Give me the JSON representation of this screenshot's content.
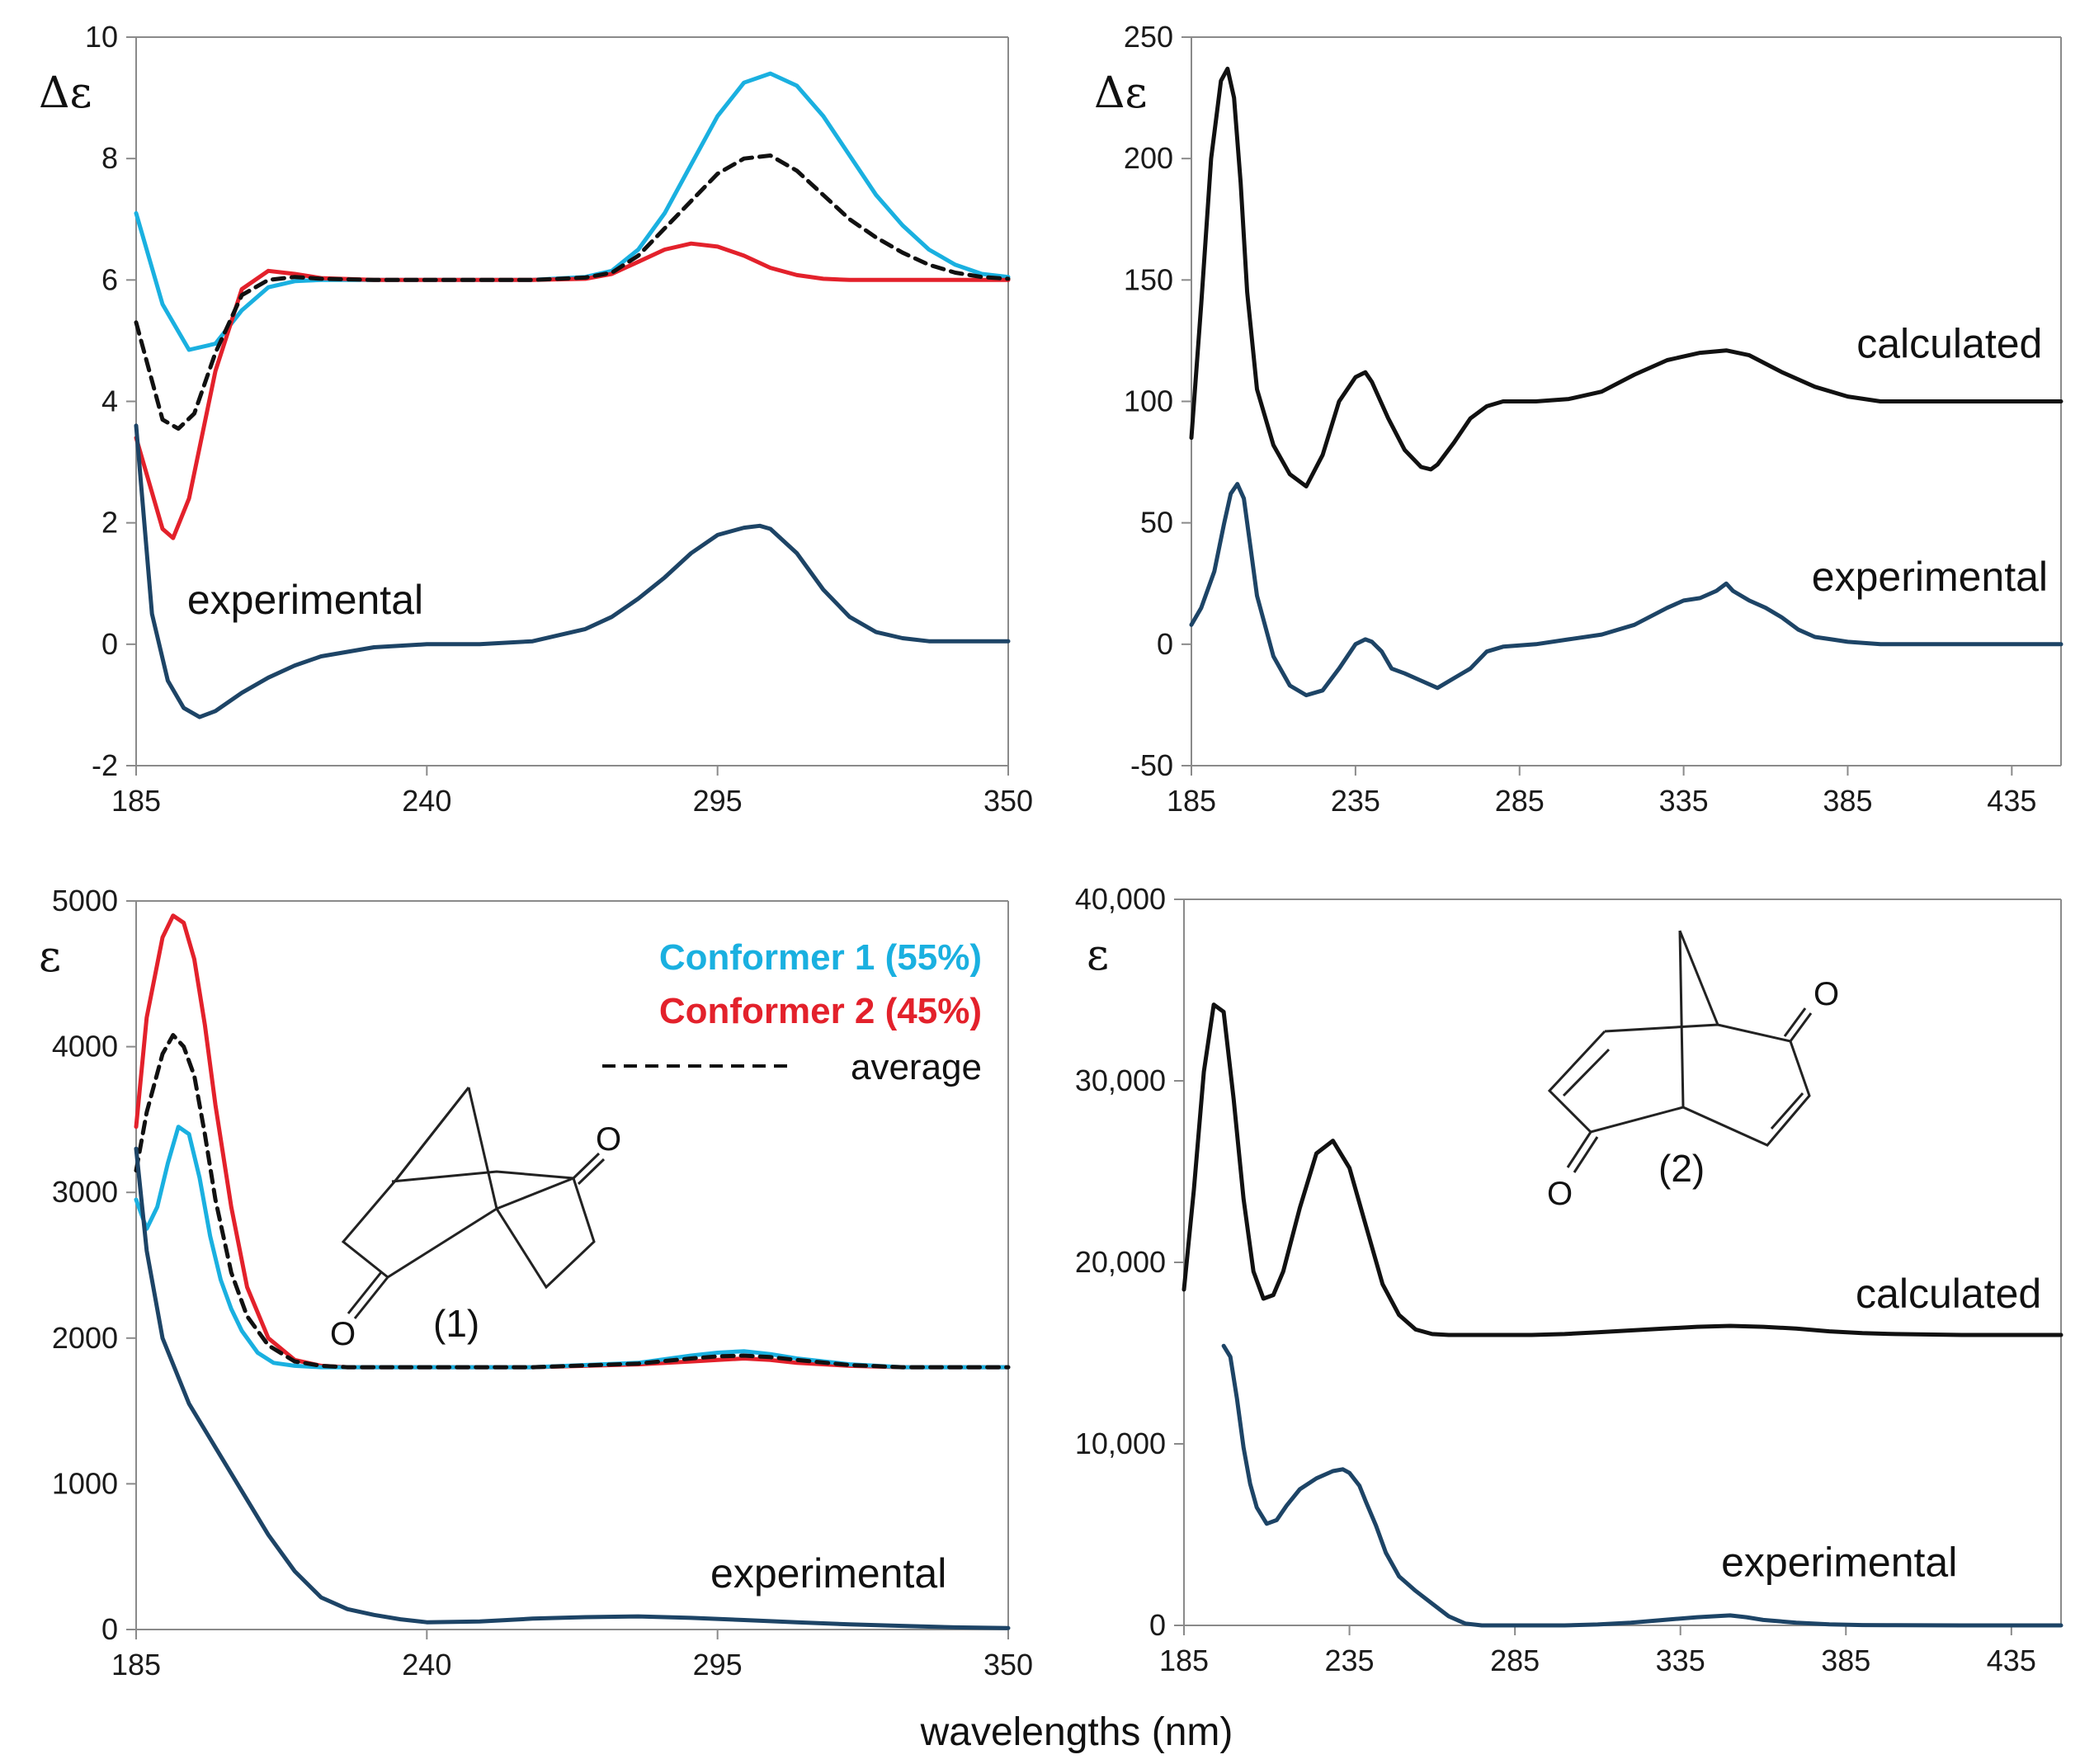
{
  "xlabel": "wavelengths (nm)",
  "colors": {
    "conformer1": "#1ab0e0",
    "conformer2": "#e3212b",
    "average": "#111111",
    "experimental": "#1d4466",
    "calculated": "#111111",
    "axis": "#8a8a8a"
  },
  "legend": {
    "conformer1": "Conformer 1 (55%)",
    "conformer2": "Conformer 2 (45%)",
    "average": "average"
  },
  "molecules": {
    "m1": {
      "label": "(1)",
      "atom_top": "O",
      "atom_bottom": "O"
    },
    "m2": {
      "label": "(2)",
      "atom_top": "O",
      "atom_bottom": "O"
    }
  },
  "chart_data": [
    {
      "id": "tl",
      "type": "line",
      "ylabel": "Δε",
      "xlim": [
        185,
        350
      ],
      "ylim": [
        -2,
        10
      ],
      "xticks": [
        185,
        240,
        295,
        350
      ],
      "yticks": [
        -2,
        0,
        2,
        4,
        6,
        8,
        10
      ],
      "ytick_labels": [
        "-2",
        "0",
        "2",
        "4",
        "6",
        "8",
        "10"
      ],
      "series_labels": [
        {
          "text": "experimental",
          "x": 217,
          "y": 0.5
        }
      ],
      "series": [
        {
          "key": "conformer1",
          "x": [
            185,
            190,
            195,
            200,
            205,
            210,
            215,
            220,
            230,
            240,
            250,
            260,
            270,
            275,
            280,
            285,
            290,
            295,
            300,
            305,
            310,
            315,
            320,
            325,
            330,
            335,
            340,
            345,
            350
          ],
          "values": [
            7.1,
            5.6,
            4.85,
            4.95,
            5.5,
            5.88,
            5.98,
            6.0,
            6.0,
            6.0,
            6.0,
            6.0,
            6.05,
            6.15,
            6.5,
            7.1,
            7.9,
            8.7,
            9.25,
            9.4,
            9.2,
            8.7,
            8.05,
            7.4,
            6.9,
            6.5,
            6.25,
            6.1,
            6.05
          ]
        },
        {
          "key": "conformer2",
          "x": [
            185,
            190,
            192,
            195,
            200,
            205,
            210,
            215,
            220,
            230,
            240,
            250,
            260,
            270,
            275,
            280,
            285,
            290,
            295,
            300,
            305,
            310,
            315,
            320,
            330,
            340,
            350
          ],
          "values": [
            3.4,
            1.9,
            1.75,
            2.4,
            4.5,
            5.85,
            6.15,
            6.1,
            6.03,
            6.0,
            6.0,
            6.0,
            6.0,
            6.02,
            6.1,
            6.3,
            6.5,
            6.6,
            6.55,
            6.4,
            6.2,
            6.08,
            6.02,
            6.0,
            6.0,
            6.0,
            6.0
          ]
        },
        {
          "key": "average",
          "dashed": true,
          "x": [
            185,
            190,
            193,
            196,
            200,
            205,
            210,
            215,
            220,
            230,
            240,
            250,
            260,
            270,
            275,
            280,
            285,
            290,
            295,
            300,
            305,
            310,
            315,
            320,
            325,
            330,
            335,
            340,
            345,
            350
          ],
          "values": [
            5.3,
            3.7,
            3.55,
            3.8,
            4.8,
            5.75,
            6.0,
            6.05,
            6.02,
            6.0,
            6.0,
            6.0,
            6.0,
            6.04,
            6.12,
            6.4,
            6.85,
            7.3,
            7.75,
            8.0,
            8.05,
            7.8,
            7.4,
            7.0,
            6.7,
            6.45,
            6.25,
            6.12,
            6.05,
            6.02
          ]
        },
        {
          "key": "experimental",
          "x": [
            185,
            188,
            191,
            194,
            197,
            200,
            205,
            210,
            215,
            220,
            230,
            240,
            250,
            260,
            270,
            275,
            280,
            285,
            290,
            295,
            300,
            303,
            305,
            310,
            315,
            320,
            325,
            330,
            335,
            340,
            345,
            350
          ],
          "values": [
            3.6,
            0.5,
            -0.6,
            -1.05,
            -1.2,
            -1.1,
            -0.8,
            -0.55,
            -0.35,
            -0.2,
            -0.05,
            0.0,
            0.0,
            0.05,
            0.25,
            0.45,
            0.75,
            1.1,
            1.5,
            1.8,
            1.92,
            1.95,
            1.9,
            1.5,
            0.9,
            0.45,
            0.2,
            0.1,
            0.05,
            0.05,
            0.05,
            0.05
          ]
        }
      ]
    },
    {
      "id": "tr",
      "type": "line",
      "ylabel": "Δε",
      "xlim": [
        185,
        450
      ],
      "ylim": [
        -50,
        250
      ],
      "xticks": [
        185,
        235,
        285,
        335,
        385,
        435
      ],
      "yticks": [
        -50,
        0,
        50,
        100,
        150,
        200,
        250
      ],
      "ytick_labels": [
        "-50",
        "0",
        "50",
        "100",
        "150",
        "200",
        "250"
      ],
      "series_labels": [
        {
          "text": "calculated",
          "x": 416,
          "y": 118
        },
        {
          "text": "experimental",
          "x": 410,
          "y": 22
        }
      ],
      "series": [
        {
          "key": "calculated",
          "x": [
            185,
            188,
            191,
            194,
            196,
            198,
            200,
            202,
            205,
            210,
            215,
            220,
            225,
            230,
            235,
            238,
            240,
            245,
            250,
            255,
            258,
            260,
            265,
            270,
            275,
            280,
            290,
            300,
            310,
            320,
            330,
            340,
            348,
            355,
            365,
            375,
            385,
            395,
            410,
            425,
            440,
            450
          ],
          "values": [
            85,
            140,
            200,
            232,
            237,
            225,
            190,
            145,
            105,
            82,
            70,
            65,
            78,
            100,
            110,
            112,
            108,
            93,
            80,
            73,
            72,
            74,
            83,
            93,
            98,
            100,
            100,
            101,
            104,
            111,
            117,
            120,
            121,
            119,
            112,
            106,
            102,
            100,
            100,
            100,
            100,
            100
          ]
        },
        {
          "key": "experimental",
          "x": [
            185,
            188,
            192,
            195,
            197,
            199,
            201,
            203,
            205,
            210,
            215,
            220,
            225,
            230,
            235,
            238,
            240,
            243,
            246,
            250,
            255,
            260,
            265,
            270,
            275,
            280,
            290,
            300,
            310,
            320,
            330,
            335,
            340,
            345,
            348,
            350,
            355,
            360,
            365,
            370,
            375,
            380,
            385,
            395,
            410,
            430,
            450
          ],
          "values": [
            8,
            15,
            30,
            50,
            62,
            66,
            60,
            40,
            20,
            -5,
            -17,
            -21,
            -19,
            -10,
            0,
            2,
            1,
            -3,
            -10,
            -12,
            -15,
            -18,
            -14,
            -10,
            -3,
            -1,
            0,
            2,
            4,
            8,
            15,
            18,
            19,
            22,
            25,
            22,
            18,
            15,
            11,
            6,
            3,
            2,
            1,
            0,
            0,
            0,
            0
          ]
        }
      ]
    },
    {
      "id": "bl",
      "type": "line",
      "ylabel": "ε",
      "xlim": [
        185,
        350
      ],
      "ylim": [
        0,
        5000
      ],
      "xticks": [
        185,
        240,
        295,
        350
      ],
      "yticks": [
        0,
        1000,
        2000,
        3000,
        4000,
        5000
      ],
      "ytick_labels": [
        "0",
        "1000",
        "2000",
        "3000",
        "4000",
        "5000"
      ],
      "series_labels": [
        {
          "text": "experimental",
          "x": 316,
          "y": 290
        }
      ],
      "series": [
        {
          "key": "conformer2",
          "x": [
            185,
            187,
            190,
            192,
            194,
            196,
            198,
            200,
            203,
            206,
            210,
            215,
            220,
            225,
            230,
            240,
            260,
            280,
            290,
            295,
            300,
            305,
            310,
            320,
            330,
            340,
            350
          ],
          "values": [
            3450,
            4200,
            4750,
            4900,
            4850,
            4600,
            4150,
            3600,
            2900,
            2350,
            2000,
            1850,
            1810,
            1800,
            1800,
            1800,
            1800,
            1820,
            1840,
            1850,
            1860,
            1850,
            1830,
            1810,
            1800,
            1800,
            1800
          ]
        },
        {
          "key": "conformer1",
          "x": [
            185,
            187,
            189,
            191,
            193,
            195,
            197,
            199,
            201,
            203,
            205,
            208,
            211,
            215,
            220,
            225,
            230,
            240,
            260,
            280,
            290,
            295,
            300,
            305,
            310,
            320,
            330,
            340,
            350
          ],
          "values": [
            2950,
            2750,
            2900,
            3200,
            3450,
            3400,
            3100,
            2700,
            2400,
            2200,
            2050,
            1900,
            1830,
            1810,
            1800,
            1800,
            1800,
            1800,
            1800,
            1830,
            1880,
            1900,
            1910,
            1890,
            1860,
            1820,
            1800,
            1800,
            1800
          ]
        },
        {
          "key": "average",
          "dashed": true,
          "x": [
            185,
            187,
            190,
            192,
            194,
            196,
            198,
            200,
            203,
            206,
            210,
            215,
            220,
            225,
            230,
            240,
            260,
            280,
            290,
            295,
            300,
            305,
            310,
            320,
            330,
            340,
            350
          ],
          "values": [
            3150,
            3550,
            3950,
            4080,
            4000,
            3800,
            3400,
            2950,
            2450,
            2150,
            1950,
            1840,
            1810,
            1800,
            1800,
            1800,
            1800,
            1825,
            1860,
            1875,
            1880,
            1870,
            1850,
            1815,
            1800,
            1800,
            1800
          ]
        },
        {
          "key": "experimental",
          "x": [
            185,
            187,
            190,
            195,
            200,
            205,
            210,
            215,
            220,
            225,
            230,
            235,
            240,
            250,
            260,
            270,
            280,
            290,
            300,
            310,
            320,
            330,
            340,
            350
          ],
          "values": [
            3300,
            2600,
            2000,
            1550,
            1250,
            950,
            650,
            400,
            220,
            140,
            100,
            70,
            50,
            55,
            75,
            85,
            90,
            80,
            65,
            50,
            35,
            25,
            15,
            10
          ]
        }
      ]
    },
    {
      "id": "br",
      "type": "line",
      "ylabel": "ε",
      "xlim": [
        185,
        450
      ],
      "ylim": [
        0,
        40000
      ],
      "xticks": [
        185,
        235,
        285,
        335,
        385,
        435
      ],
      "yticks": [
        0,
        10000,
        20000,
        30000,
        40000
      ],
      "ytick_labels": [
        "0",
        "10,000",
        "20,000",
        "30,000",
        "40,000"
      ],
      "series_labels": [
        {
          "text": "calculated",
          "x": 416,
          "y": 17500
        },
        {
          "text": "experimental",
          "x": 383,
          "y": 2700
        }
      ],
      "series": [
        {
          "key": "calculated",
          "x": [
            185,
            188,
            191,
            194,
            197,
            200,
            203,
            206,
            209,
            212,
            215,
            220,
            225,
            230,
            235,
            240,
            245,
            250,
            255,
            260,
            265,
            270,
            275,
            280,
            290,
            300,
            310,
            320,
            330,
            340,
            350,
            360,
            370,
            380,
            390,
            400,
            420,
            440,
            450
          ],
          "values": [
            18500,
            24000,
            30500,
            34200,
            33800,
            29000,
            23500,
            19500,
            18000,
            18200,
            19500,
            23000,
            26000,
            26700,
            25200,
            22000,
            18800,
            17100,
            16300,
            16050,
            16000,
            16000,
            16000,
            16000,
            16000,
            16050,
            16150,
            16250,
            16350,
            16450,
            16500,
            16450,
            16350,
            16200,
            16100,
            16050,
            16000,
            16000,
            16000
          ]
        },
        {
          "key": "experimental",
          "x": [
            197,
            199,
            201,
            203,
            205,
            207,
            210,
            213,
            216,
            220,
            225,
            230,
            233,
            235,
            238,
            240,
            243,
            246,
            250,
            255,
            260,
            265,
            270,
            275,
            280,
            290,
            300,
            310,
            320,
            330,
            340,
            345,
            350,
            355,
            360,
            370,
            380,
            390,
            400,
            420,
            440,
            450
          ],
          "values": [
            15400,
            14800,
            12500,
            9800,
            7800,
            6500,
            5600,
            5800,
            6600,
            7500,
            8100,
            8500,
            8600,
            8400,
            7700,
            6800,
            5500,
            4000,
            2700,
            1900,
            1200,
            500,
            100,
            0,
            0,
            0,
            0,
            50,
            150,
            300,
            450,
            500,
            550,
            450,
            300,
            150,
            60,
            20,
            10,
            0,
            0,
            0
          ]
        }
      ]
    }
  ]
}
